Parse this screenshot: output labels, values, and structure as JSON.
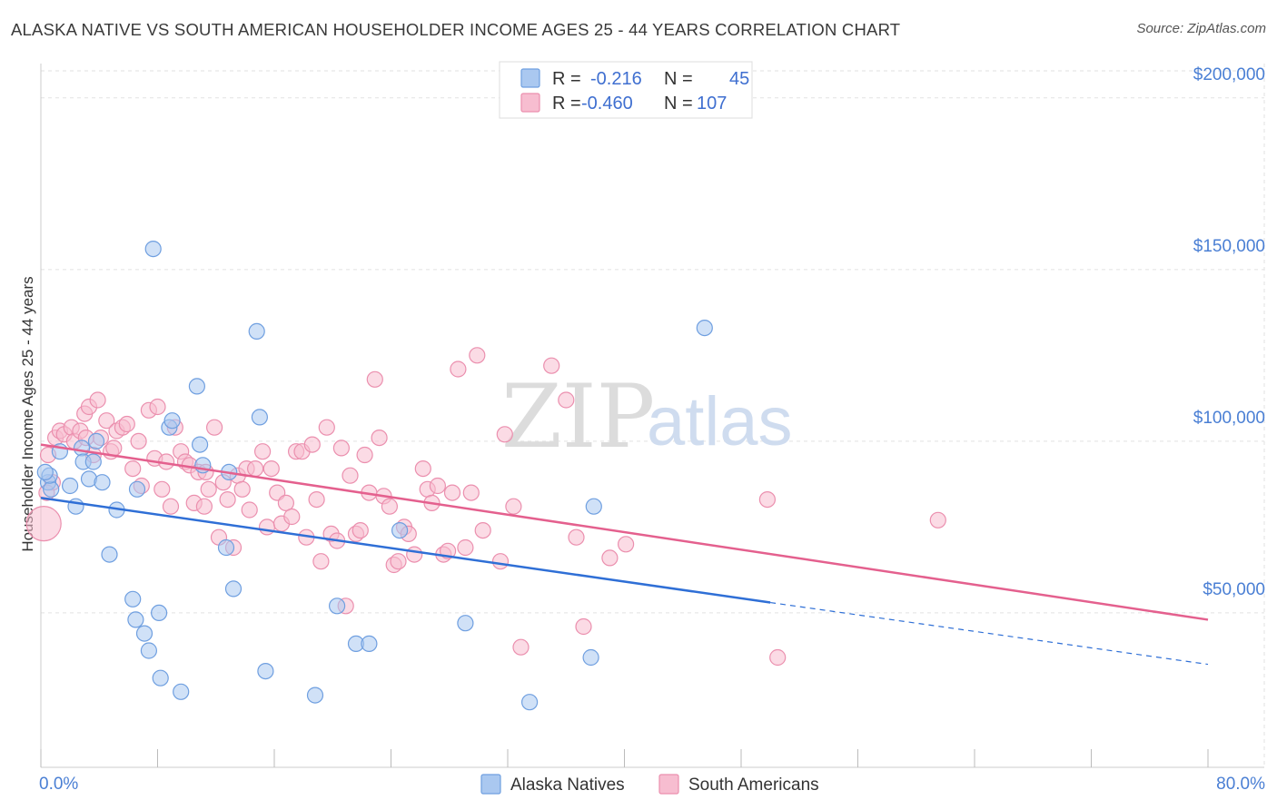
{
  "header": {
    "title": "ALASKA NATIVE VS SOUTH AMERICAN HOUSEHOLDER INCOME AGES 25 - 44 YEARS CORRELATION CHART",
    "source": "Source: ZipAtlas.com"
  },
  "watermark": {
    "zip": "ZIP",
    "atlas": "atlas"
  },
  "legend": {
    "r_label": "R =",
    "n_label": "N =",
    "rows": [
      {
        "r": "-0.216",
        "n": "45"
      },
      {
        "r": "-0.460",
        "n": "107"
      }
    ]
  },
  "chart_data": {
    "type": "scatter",
    "title": "ALASKA NATIVE VS SOUTH AMERICAN HOUSEHOLDER INCOME AGES 25 - 44 YEARS CORRELATION CHART",
    "xlabel": "",
    "ylabel": "Householder Income Ages 25 - 44 years",
    "xlim": [
      0,
      80
    ],
    "ylim": [
      5000,
      210000
    ],
    "x_tick_labels": [
      "0.0%",
      "80.0%"
    ],
    "y_ticks": [
      50000,
      100000,
      150000,
      200000
    ],
    "y_tick_labels": [
      "$50,000",
      "$100,000",
      "$150,000",
      "$200,000"
    ],
    "grid": true,
    "legend_position": "top-center",
    "colors": {
      "Alaska Natives": {
        "fill": "#aac8f0",
        "stroke": "#6f9fe0",
        "line": "#2f6fd6"
      },
      "South Americans": {
        "fill": "#f7bdd0",
        "stroke": "#eb8fae",
        "line": "#e4608e"
      }
    },
    "series": [
      {
        "name": "Alaska Natives",
        "r": -0.216,
        "n": 45,
        "trend": {
          "x0": 0,
          "y0": 83500,
          "x1": 50,
          "y1": 53000,
          "dashed_to_x": 80,
          "dashed_to_y": 35000
        },
        "points": [
          [
            0.5,
            88000
          ],
          [
            0.7,
            86000
          ],
          [
            0.6,
            90000
          ],
          [
            1.3,
            97000
          ],
          [
            2.0,
            87000
          ],
          [
            2.4,
            81000
          ],
          [
            2.8,
            98000
          ],
          [
            2.9,
            94000
          ],
          [
            3.3,
            89000
          ],
          [
            3.6,
            94000
          ],
          [
            3.8,
            100000
          ],
          [
            4.2,
            88000
          ],
          [
            4.7,
            67000
          ],
          [
            5.2,
            80000
          ],
          [
            6.3,
            54000
          ],
          [
            6.6,
            86000
          ],
          [
            6.5,
            48000
          ],
          [
            7.1,
            44000
          ],
          [
            7.4,
            39000
          ],
          [
            7.7,
            156000
          ],
          [
            8.1,
            50000
          ],
          [
            8.2,
            31000
          ],
          [
            8.8,
            104000
          ],
          [
            9.0,
            106000
          ],
          [
            9.6,
            27000
          ],
          [
            10.7,
            116000
          ],
          [
            10.9,
            99000
          ],
          [
            11.1,
            93000
          ],
          [
            12.7,
            69000
          ],
          [
            12.9,
            91000
          ],
          [
            13.2,
            57000
          ],
          [
            14.8,
            132000
          ],
          [
            15.0,
            107000
          ],
          [
            15.4,
            33000
          ],
          [
            18.8,
            26000
          ],
          [
            20.3,
            52000
          ],
          [
            21.6,
            41000
          ],
          [
            22.5,
            41000
          ],
          [
            24.6,
            74000
          ],
          [
            29.1,
            47000
          ],
          [
            33.5,
            24000
          ],
          [
            37.7,
            37000
          ],
          [
            37.9,
            81000
          ],
          [
            45.5,
            133000
          ],
          [
            0.3,
            91000
          ]
        ]
      },
      {
        "name": "South Americans",
        "r": -0.46,
        "n": 107,
        "trend": {
          "x0": 0,
          "y0": 99000,
          "x1": 80,
          "y1": 48000
        },
        "points": [
          [
            0.2,
            76000
          ],
          [
            0.5,
            96000
          ],
          [
            0.8,
            88000
          ],
          [
            1.0,
            101000
          ],
          [
            1.3,
            103000
          ],
          [
            1.6,
            102000
          ],
          [
            2.1,
            104000
          ],
          [
            2.3,
            100000
          ],
          [
            2.7,
            103000
          ],
          [
            3.0,
            108000
          ],
          [
            3.3,
            110000
          ],
          [
            3.6,
            96000
          ],
          [
            3.9,
            112000
          ],
          [
            4.1,
            101000
          ],
          [
            4.5,
            106000
          ],
          [
            4.8,
            97000
          ],
          [
            5.2,
            103000
          ],
          [
            5.6,
            104000
          ],
          [
            5.9,
            105000
          ],
          [
            6.3,
            92000
          ],
          [
            6.7,
            100000
          ],
          [
            6.9,
            87000
          ],
          [
            7.4,
            109000
          ],
          [
            7.8,
            95000
          ],
          [
            8.0,
            110000
          ],
          [
            8.3,
            86000
          ],
          [
            8.6,
            94000
          ],
          [
            8.9,
            81000
          ],
          [
            9.2,
            104000
          ],
          [
            9.6,
            97000
          ],
          [
            9.9,
            94000
          ],
          [
            10.2,
            93000
          ],
          [
            10.5,
            82000
          ],
          [
            10.8,
            91000
          ],
          [
            11.2,
            81000
          ],
          [
            11.5,
            86000
          ],
          [
            11.9,
            104000
          ],
          [
            12.2,
            72000
          ],
          [
            12.5,
            88000
          ],
          [
            12.8,
            83000
          ],
          [
            13.2,
            69000
          ],
          [
            13.5,
            90000
          ],
          [
            13.8,
            86000
          ],
          [
            14.1,
            92000
          ],
          [
            14.7,
            92000
          ],
          [
            15.2,
            97000
          ],
          [
            15.5,
            75000
          ],
          [
            15.8,
            92000
          ],
          [
            16.2,
            85000
          ],
          [
            16.5,
            76000
          ],
          [
            16.8,
            82000
          ],
          [
            17.2,
            78000
          ],
          [
            17.5,
            97000
          ],
          [
            17.9,
            97000
          ],
          [
            18.2,
            72000
          ],
          [
            18.6,
            99000
          ],
          [
            18.9,
            83000
          ],
          [
            19.2,
            65000
          ],
          [
            19.6,
            104000
          ],
          [
            19.9,
            73000
          ],
          [
            20.3,
            71000
          ],
          [
            20.6,
            98000
          ],
          [
            20.9,
            52000
          ],
          [
            21.2,
            90000
          ],
          [
            21.6,
            73000
          ],
          [
            21.9,
            74000
          ],
          [
            22.2,
            96000
          ],
          [
            22.5,
            85000
          ],
          [
            22.9,
            118000
          ],
          [
            23.2,
            101000
          ],
          [
            23.5,
            84000
          ],
          [
            23.9,
            81000
          ],
          [
            24.2,
            64000
          ],
          [
            24.9,
            75000
          ],
          [
            25.2,
            73000
          ],
          [
            25.6,
            67000
          ],
          [
            26.2,
            92000
          ],
          [
            26.5,
            86000
          ],
          [
            26.8,
            82000
          ],
          [
            27.2,
            87000
          ],
          [
            27.6,
            67000
          ],
          [
            27.9,
            68000
          ],
          [
            28.2,
            85000
          ],
          [
            28.6,
            121000
          ],
          [
            29.1,
            69000
          ],
          [
            29.5,
            85000
          ],
          [
            29.9,
            125000
          ],
          [
            30.3,
            74000
          ],
          [
            31.5,
            65000
          ],
          [
            31.8,
            102000
          ],
          [
            32.4,
            81000
          ],
          [
            32.9,
            40000
          ],
          [
            35.0,
            122000
          ],
          [
            36.0,
            112000
          ],
          [
            36.7,
            72000
          ],
          [
            37.2,
            46000
          ],
          [
            39.0,
            66000
          ],
          [
            40.1,
            70000
          ],
          [
            49.8,
            83000
          ],
          [
            50.5,
            37000
          ],
          [
            61.5,
            77000
          ],
          [
            3.1,
            101000
          ],
          [
            5.0,
            98000
          ],
          [
            14.3,
            80000
          ],
          [
            24.5,
            65000
          ],
          [
            0.4,
            85000
          ],
          [
            11.3,
            91000
          ]
        ]
      }
    ]
  },
  "bottom_legend": {
    "items": [
      {
        "label": "Alaska Natives"
      },
      {
        "label": "South Americans"
      }
    ]
  }
}
